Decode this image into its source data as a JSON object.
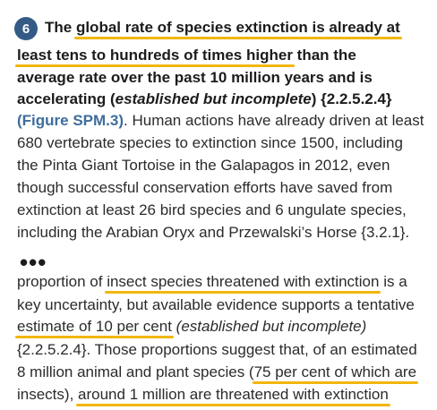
{
  "para1": {
    "badge": "6",
    "l1": {
      "a": "The ",
      "b": "global rate of species extinction is already at"
    },
    "l2": {
      "a": "least tens to hundreds of times higher",
      "b": " than the"
    },
    "l3": "average rate over the past 10 million years and is",
    "l4": {
      "a": "accelerating (",
      "b": "established but incomplete",
      "c": ") {2.2.5.2.4}"
    },
    "l5": {
      "a": "(Figure SPM.3)",
      "b": ". Human actions have already driven at least"
    },
    "l6": "680 vertebrate species to extinction since 1500, including",
    "l7": "the Pinta Giant Tortoise in the Galapagos in 2012, even",
    "l8": "though successful conservation efforts have saved from",
    "l9": "extinction at least 26 bird species and 6 ungulate species,",
    "l10": "including the Arabian Oryx and Przewalski’s Horse {3.2.1}."
  },
  "ellipsis": "•••",
  "para2": {
    "l1": {
      "a": "proportion of ",
      "b": "insect species threatened with extinction",
      "c": " is a"
    },
    "l2": "key uncertainty, but available evidence supports a tentative",
    "l3": {
      "a": "estimate of 10 per cent",
      "b": " ",
      "c": "(established but incomplete)"
    },
    "l4": "{2.2.5.2.4}. Those proportions suggest that, of an estimated",
    "l5": {
      "a": "8 million animal and plant species (",
      "b": "75 per cent of which are"
    },
    "l6": {
      "a": "insects), ",
      "b": "around 1 million are threatened with extinction"
    }
  },
  "highlight_color": "#f2b60f",
  "badge_color": "#345b86",
  "link_color": "#3e6d9c"
}
